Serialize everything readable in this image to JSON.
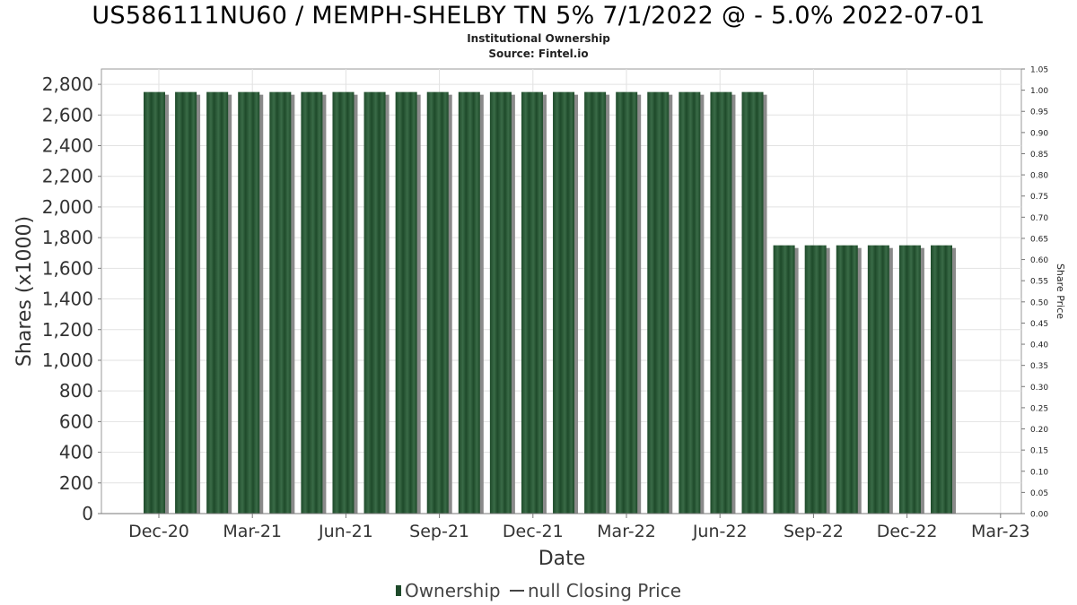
{
  "title": "US586111NU60 / MEMPH-SHELBY TN 5% 7/1/2022 @ - 5.0% 2022-07-01",
  "subtitle": "Institutional Ownership",
  "source": "Source: Fintel.io",
  "legend": {
    "ownership": "Ownership",
    "price": "null Closing Price"
  },
  "colors": {
    "bar": "#1e4a2a",
    "bar_light": "#3a6b47",
    "bar_shadow": "#8a8a8a",
    "grid": "#e2e2e2"
  },
  "chart_data": {
    "type": "bar",
    "xlabel": "Date",
    "ylabel": "Shares (x1000)",
    "y2label": "Share Price",
    "ylim": [
      0,
      2900
    ],
    "y2lim": [
      0,
      1.05
    ],
    "yticks": [
      "0",
      "200",
      "400",
      "600",
      "800",
      "1,000",
      "1,200",
      "1,400",
      "1,600",
      "1,800",
      "2,000",
      "2,200",
      "2,400",
      "2,600",
      "2,800"
    ],
    "y2ticks": [
      "0.00",
      "0.05",
      "0.10",
      "0.15",
      "0.20",
      "0.25",
      "0.30",
      "0.35",
      "0.40",
      "0.45",
      "0.50",
      "0.55",
      "0.60",
      "0.65",
      "0.70",
      "0.75",
      "0.80",
      "0.85",
      "0.90",
      "0.95",
      "1.00",
      "1.05"
    ],
    "xticks": [
      "Dec-20",
      "Mar-21",
      "Jun-21",
      "Sep-21",
      "Dec-21",
      "Mar-22",
      "Jun-22",
      "Sep-22",
      "Dec-22",
      "Mar-23"
    ],
    "series": [
      {
        "name": "Ownership",
        "values": [
          2750,
          2750,
          2750,
          2750,
          2750,
          2750,
          2750,
          2750,
          2750,
          2750,
          2750,
          2750,
          2750,
          2750,
          2750,
          2750,
          2750,
          2750,
          2750,
          2750,
          1750,
          1750,
          1750,
          1750,
          1750,
          1750
        ]
      }
    ],
    "grid": true,
    "legend_position": "bottom"
  }
}
